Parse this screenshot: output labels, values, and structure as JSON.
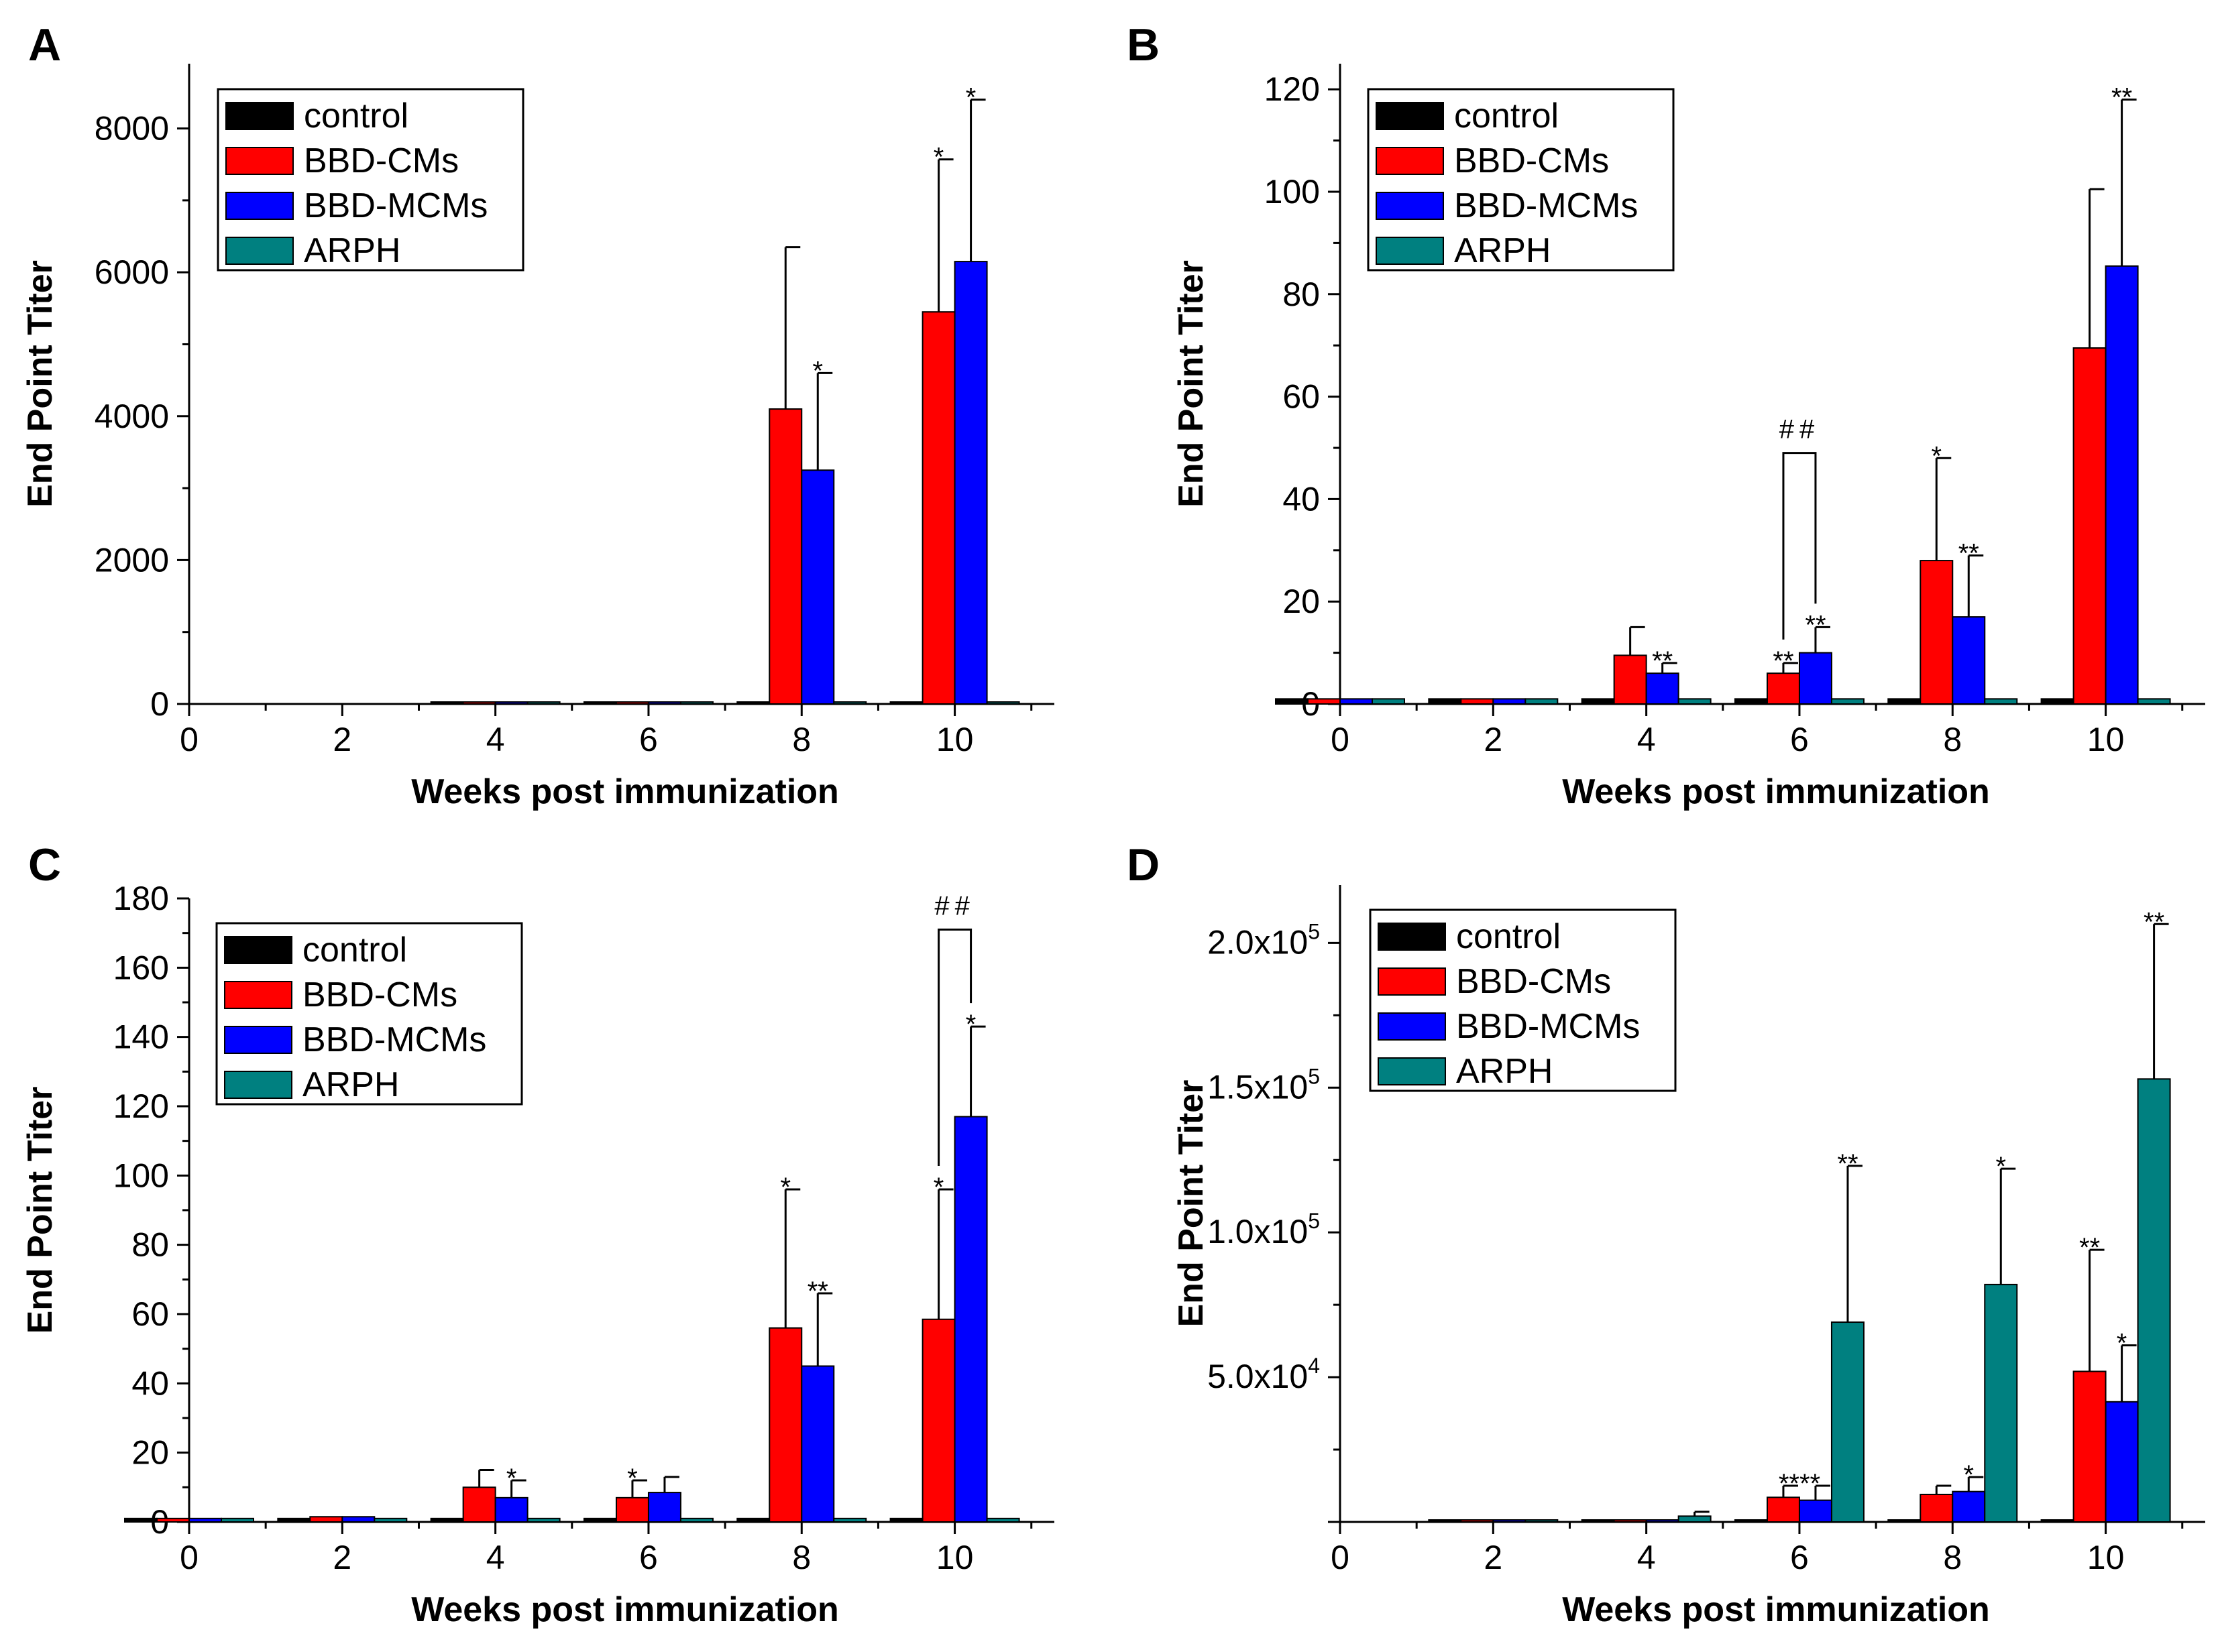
{
  "figure": {
    "series_names": [
      "control",
      "BBD-CMs",
      "BBD-MCMs",
      "ARPH"
    ],
    "series_colors": [
      "#000000",
      "#ff0000",
      "#0000ff",
      "#008080"
    ]
  },
  "chart_data": [
    {
      "panel": "A",
      "type": "bar",
      "title": "",
      "xlabel": "Weeks post immunization",
      "ylabel": "End Point Titer",
      "x_ticks": [
        "0",
        "2",
        "4",
        "6",
        "8",
        "10"
      ],
      "y_ticks": [
        "0",
        "2000",
        "4000",
        "6000",
        "8000"
      ],
      "ylim": [
        0,
        8900
      ],
      "legend": {
        "position": "top-left",
        "entries": [
          "control",
          "BBD-CMs",
          "BBD-MCMs",
          "ARPH"
        ]
      },
      "categories": [
        4,
        6,
        8,
        10
      ],
      "series": [
        {
          "name": "control",
          "values": [
            0,
            0,
            0,
            0
          ],
          "errors": [
            0,
            0,
            0,
            0
          ]
        },
        {
          "name": "BBD-CMs",
          "values": [
            10,
            15,
            4100,
            5450
          ],
          "errors": [
            0,
            0,
            2250,
            2120
          ]
        },
        {
          "name": "BBD-MCMs",
          "values": [
            10,
            15,
            3250,
            6150
          ],
          "errors": [
            0,
            0,
            1350,
            2250
          ]
        },
        {
          "name": "ARPH",
          "values": [
            0,
            0,
            0,
            0
          ],
          "errors": [
            0,
            0,
            0,
            0
          ]
        }
      ],
      "annotations": [
        {
          "text": "*",
          "x": 8,
          "series": "BBD-MCMs"
        },
        {
          "text": "*",
          "x": 10,
          "series": "BBD-CMs"
        },
        {
          "text": "*",
          "x": 10,
          "series": "BBD-MCMs"
        }
      ],
      "brackets": []
    },
    {
      "panel": "B",
      "type": "bar",
      "title": "",
      "xlabel": "Weeks post immunization",
      "ylabel": "End Point Titer",
      "x_ticks": [
        "0",
        "2",
        "4",
        "6",
        "8",
        "10"
      ],
      "y_ticks": [
        "0",
        "20",
        "40",
        "60",
        "80",
        "100",
        "120"
      ],
      "ylim": [
        0,
        125
      ],
      "legend": {
        "position": "top-left",
        "entries": [
          "control",
          "BBD-CMs",
          "BBD-MCMs",
          "ARPH"
        ]
      },
      "categories": [
        0,
        2,
        4,
        6,
        8,
        10
      ],
      "series": [
        {
          "name": "control",
          "values": [
            1,
            1,
            1,
            1,
            1,
            1
          ],
          "errors": [
            0,
            0,
            0,
            0,
            0,
            0
          ]
        },
        {
          "name": "BBD-CMs",
          "values": [
            1,
            1,
            9.5,
            6,
            28,
            69.5
          ],
          "errors": [
            0,
            0,
            5.5,
            2,
            20,
            31
          ]
        },
        {
          "name": "BBD-MCMs",
          "values": [
            1,
            1,
            6,
            10,
            17,
            85.5
          ],
          "errors": [
            0,
            0,
            2,
            5,
            12,
            32.5
          ]
        },
        {
          "name": "ARPH",
          "values": [
            1,
            1,
            1,
            1,
            1,
            1
          ],
          "errors": [
            0,
            0,
            0,
            0,
            0,
            0
          ]
        }
      ],
      "annotations": [
        {
          "text": "**",
          "x": 4,
          "series": "BBD-MCMs"
        },
        {
          "text": "**",
          "x": 6,
          "series": "BBD-CMs"
        },
        {
          "text": "**",
          "x": 6,
          "series": "BBD-MCMs"
        },
        {
          "text": "*",
          "x": 8,
          "series": "BBD-CMs"
        },
        {
          "text": "**",
          "x": 8,
          "series": "BBD-MCMs"
        },
        {
          "text": "**",
          "x": 10,
          "series": "BBD-MCMs"
        }
      ],
      "brackets": [
        {
          "text": "##",
          "x": 6,
          "from": "BBD-CMs",
          "to": "BBD-MCMs",
          "top": 49
        }
      ]
    },
    {
      "panel": "C",
      "type": "bar",
      "title": "",
      "xlabel": "Weeks post immunization",
      "ylabel": "End Point Titer",
      "x_ticks": [
        "0",
        "2",
        "4",
        "6",
        "8",
        "10"
      ],
      "y_ticks": [
        "0",
        "20",
        "40",
        "60",
        "80",
        "100",
        "120",
        "140",
        "160",
        "180"
      ],
      "ylim": [
        0,
        180
      ],
      "legend": {
        "position": "top-left",
        "entries": [
          "control",
          "BBD-CMs",
          "BBD-MCMs",
          "ARPH"
        ]
      },
      "categories": [
        0,
        2,
        4,
        6,
        8,
        10
      ],
      "series": [
        {
          "name": "control",
          "values": [
            1,
            1,
            1,
            1,
            1,
            1
          ],
          "errors": [
            0,
            0,
            0,
            0,
            0,
            0
          ]
        },
        {
          "name": "BBD-CMs",
          "values": [
            1,
            1.5,
            10,
            7,
            56,
            58.5
          ],
          "errors": [
            0,
            0,
            5,
            5,
            40,
            37.5
          ]
        },
        {
          "name": "BBD-MCMs",
          "values": [
            1,
            1.5,
            7,
            8.5,
            45,
            117
          ],
          "errors": [
            0,
            0,
            5,
            4.5,
            21,
            26
          ]
        },
        {
          "name": "ARPH",
          "values": [
            1,
            1,
            1,
            1,
            1,
            1
          ],
          "errors": [
            0,
            0,
            0,
            0,
            0,
            0
          ]
        }
      ],
      "annotations": [
        {
          "text": "*",
          "x": 4,
          "series": "BBD-MCMs"
        },
        {
          "text": "*",
          "x": 6,
          "series": "BBD-CMs"
        },
        {
          "text": "*",
          "x": 8,
          "series": "BBD-CMs"
        },
        {
          "text": "**",
          "x": 8,
          "series": "BBD-MCMs"
        },
        {
          "text": "*",
          "x": 10,
          "series": "BBD-CMs"
        },
        {
          "text": "*",
          "x": 10,
          "series": "BBD-MCMs"
        }
      ],
      "brackets": [
        {
          "text": "##",
          "x": 10,
          "from": "BBD-CMs",
          "to": "BBD-MCMs",
          "top": 171
        }
      ]
    },
    {
      "panel": "D",
      "type": "bar",
      "title": "",
      "xlabel": "Weeks post immunization",
      "ylabel": "End Point Titer",
      "x_ticks": [
        "0",
        "2",
        "4",
        "6",
        "8",
        "10"
      ],
      "y_ticks": [
        {
          "value": 50000,
          "mantissa": "5.0x10",
          "exp": "4"
        },
        {
          "value": 100000,
          "mantissa": "1.0x10",
          "exp": "5"
        },
        {
          "value": 150000,
          "mantissa": "1.5x10",
          "exp": "5"
        },
        {
          "value": 200000,
          "mantissa": "2.0x10",
          "exp": "5"
        }
      ],
      "ylim": [
        0,
        220000
      ],
      "legend": {
        "position": "top-left",
        "entries": [
          "control",
          "BBD-CMs",
          "BBD-MCMs",
          "ARPH"
        ]
      },
      "categories": [
        2,
        4,
        6,
        8,
        10
      ],
      "series": [
        {
          "name": "control",
          "values": [
            0,
            0,
            0,
            0,
            0
          ],
          "errors": [
            0,
            0,
            0,
            0,
            0
          ]
        },
        {
          "name": "BBD-CMs",
          "values": [
            200,
            300,
            8500,
            9500,
            52000
          ],
          "errors": [
            0,
            0,
            4000,
            3000,
            42000
          ]
        },
        {
          "name": "BBD-MCMs",
          "values": [
            200,
            300,
            7500,
            10500,
            41500
          ],
          "errors": [
            0,
            0,
            5000,
            5000,
            19500
          ]
        },
        {
          "name": "ARPH",
          "values": [
            200,
            2000,
            69000,
            82000,
            153000
          ],
          "errors": [
            0,
            1500,
            54000,
            40000,
            53500
          ]
        }
      ],
      "annotations": [
        {
          "text": "****",
          "x": 6,
          "between": [
            "BBD-CMs",
            "BBD-MCMs"
          ]
        },
        {
          "text": "**",
          "x": 6,
          "series": "ARPH"
        },
        {
          "text": "*",
          "x": 8,
          "series": "BBD-MCMs"
        },
        {
          "text": "*",
          "x": 8,
          "series": "ARPH"
        },
        {
          "text": "**",
          "x": 10,
          "series": "BBD-CMs"
        },
        {
          "text": "*",
          "x": 10,
          "series": "BBD-MCMs"
        },
        {
          "text": "**",
          "x": 10,
          "series": "ARPH"
        }
      ],
      "brackets": []
    }
  ]
}
